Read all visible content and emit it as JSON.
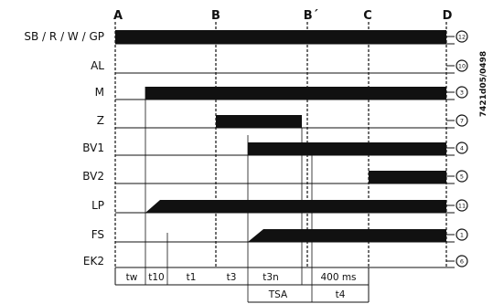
{
  "doc_ref": "7421d05/0498",
  "markers": [
    "A",
    "B",
    "B´",
    "C",
    "D"
  ],
  "rows": [
    {
      "label": "SB / R / W / GP",
      "terminal": "12"
    },
    {
      "label": "AL",
      "terminal": "10"
    },
    {
      "label": "M",
      "terminal": "3"
    },
    {
      "label": "Z",
      "terminal": "7"
    },
    {
      "label": "BV1",
      "terminal": "4"
    },
    {
      "label": "BV2",
      "terminal": "5"
    },
    {
      "label": "LP",
      "terminal": "11"
    },
    {
      "label": "FS",
      "terminal": "1"
    },
    {
      "label": "EK2",
      "terminal": "6"
    }
  ],
  "timing_segments": [
    "tw",
    "t10",
    "t1",
    "t3",
    "t3n",
    "400 ms"
  ],
  "lower_segments": [
    "TSA",
    "t4"
  ]
}
